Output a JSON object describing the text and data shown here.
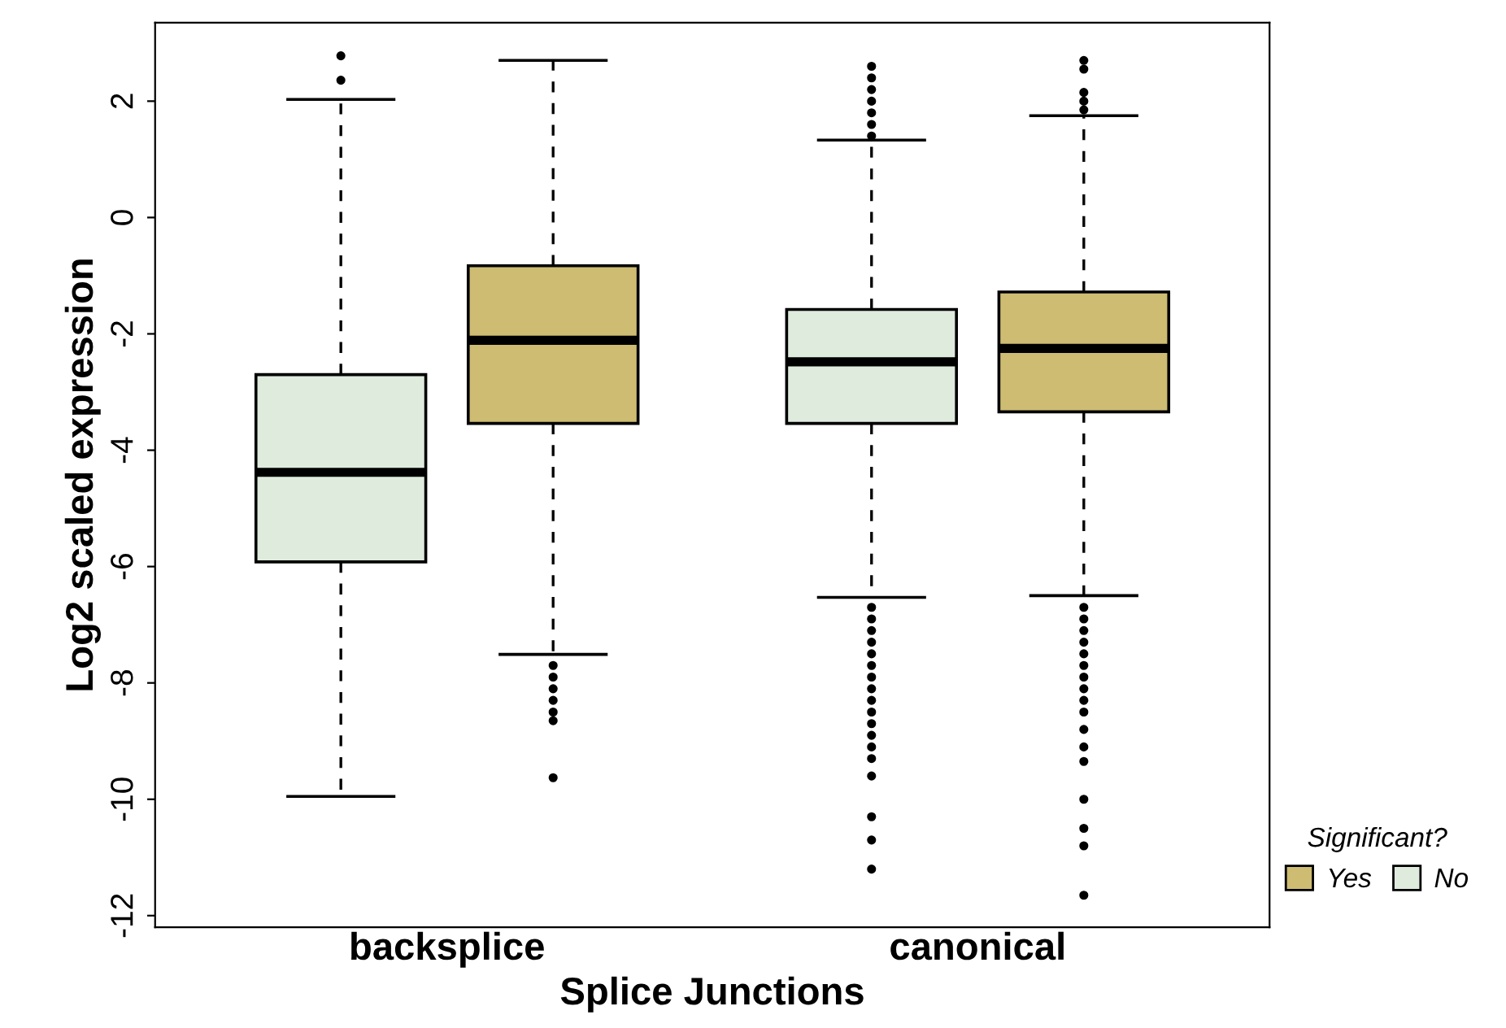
{
  "chart_data": {
    "type": "box",
    "xlabel": "Splice Junctions",
    "ylabel": "Log2 scaled expression",
    "legend_title": "Significant?",
    "categories": [
      "backsplice",
      "canonical"
    ],
    "series": [
      {
        "name": "No",
        "color": "#deebdd",
        "boxes": [
          {
            "low": -9.95,
            "q1": -5.92,
            "median": -4.38,
            "q3": -2.7,
            "high": 2.03,
            "outliers": [
              2.36,
              2.78
            ]
          },
          {
            "low": -6.53,
            "q1": -3.54,
            "median": -2.48,
            "q3": -1.58,
            "high": 1.33,
            "outliers": [
              1.4,
              1.6,
              1.8,
              2.0,
              2.2,
              2.4,
              2.6,
              -6.7,
              -6.9,
              -7.1,
              -7.3,
              -7.5,
              -7.7,
              -7.9,
              -8.1,
              -8.3,
              -8.5,
              -8.7,
              -8.9,
              -9.1,
              -9.3,
              -9.6,
              -10.3,
              -10.7,
              -11.2
            ]
          }
        ]
      },
      {
        "name": "Yes",
        "color": "#cdbc72",
        "boxes": [
          {
            "low": -7.51,
            "q1": -3.54,
            "median": -2.11,
            "q3": -0.83,
            "high": 2.7,
            "outliers": [
              -7.7,
              -7.9,
              -8.1,
              -8.3,
              -8.5,
              -8.65,
              -9.63
            ]
          },
          {
            "low": -6.5,
            "q1": -3.34,
            "median": -2.25,
            "q3": -1.28,
            "high": 1.75,
            "outliers": [
              1.85,
              2.0,
              2.15,
              2.55,
              2.7,
              -6.7,
              -6.9,
              -7.1,
              -7.3,
              -7.5,
              -7.7,
              -7.9,
              -8.1,
              -8.3,
              -8.5,
              -8.8,
              -9.1,
              -9.35,
              -10.0,
              -10.5,
              -10.8,
              -11.65
            ]
          }
        ]
      }
    ],
    "ylim": [
      -12.2,
      3.35
    ],
    "yticks": [
      -12,
      -10,
      -8,
      -6,
      -4,
      -2,
      0,
      2
    ],
    "grid": false,
    "legend": "bottom right"
  }
}
